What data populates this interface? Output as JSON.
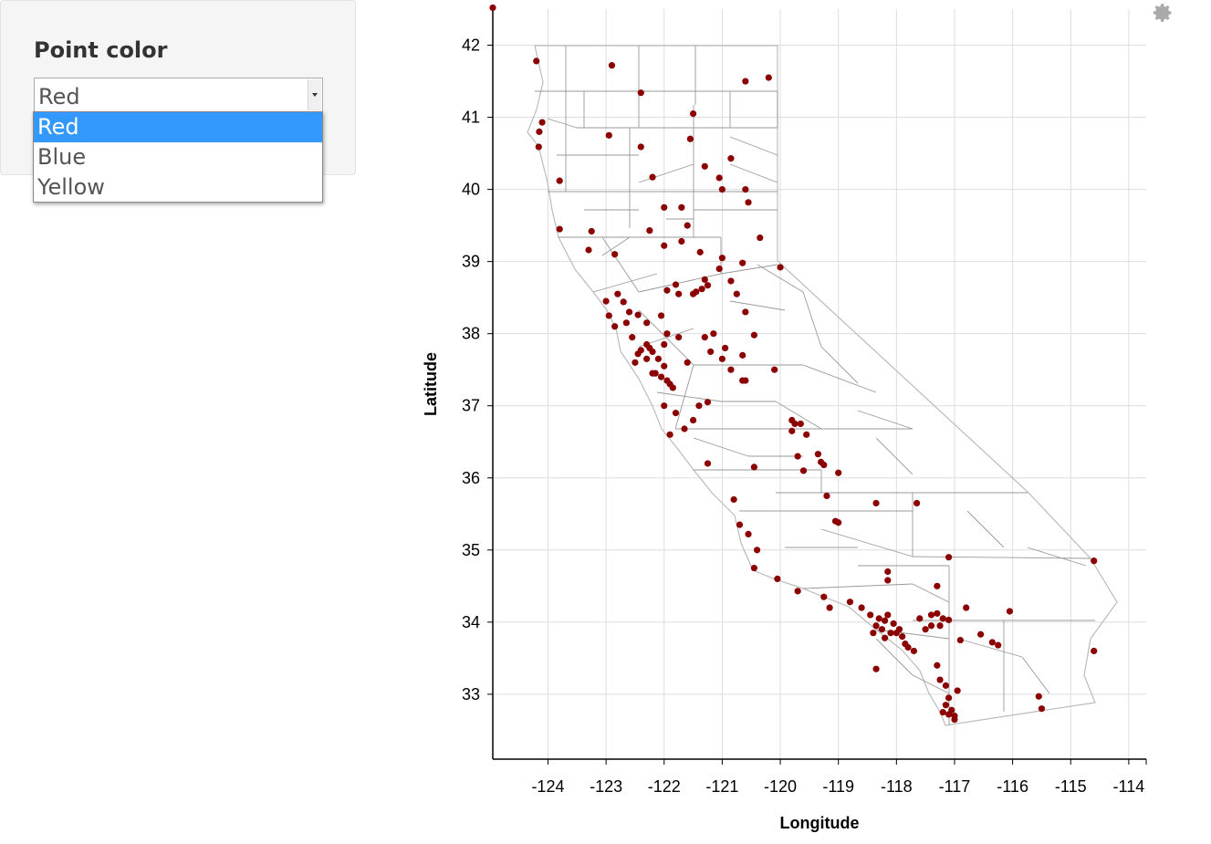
{
  "control": {
    "label": "Point color",
    "selected": "Red",
    "options": [
      "Red",
      "Blue",
      "Yellow"
    ]
  },
  "toolbar": {
    "icon": "gear-icon"
  },
  "colors": {
    "point": "#8b0000",
    "boundary": "#999999",
    "grid": "#dddddd",
    "selected_option": "#3399ff"
  },
  "chart_data": {
    "type": "scatter",
    "title": "",
    "xlabel": "Longitude",
    "ylabel": "Latitude",
    "xlim": [
      -124.95,
      -113.7
    ],
    "ylim": [
      32.1,
      42.5
    ],
    "xticks": [
      -124,
      -123,
      -122,
      -121,
      -120,
      -119,
      -118,
      -117,
      -116,
      -115,
      -114
    ],
    "yticks": [
      33,
      34,
      35,
      36,
      37,
      38,
      39,
      40,
      41,
      42
    ],
    "grid": true,
    "background_map": "California county boundaries",
    "series": [
      {
        "points": [
          [
            -124.95,
            42.52
          ],
          [
            -124.2,
            41.78
          ],
          [
            -122.9,
            41.72
          ],
          [
            -122.4,
            41.34
          ],
          [
            -120.6,
            41.5
          ],
          [
            -120.2,
            41.55
          ],
          [
            -121.5,
            41.05
          ],
          [
            -124.1,
            40.93
          ],
          [
            -124.15,
            40.8
          ],
          [
            -124.16,
            40.59
          ],
          [
            -122.95,
            40.75
          ],
          [
            -122.4,
            40.59
          ],
          [
            -122.2,
            40.17
          ],
          [
            -121.3,
            40.32
          ],
          [
            -120.85,
            40.43
          ],
          [
            -121.05,
            40.16
          ],
          [
            -121.0,
            40.0
          ],
          [
            -120.55,
            39.82
          ],
          [
            -123.8,
            40.12
          ],
          [
            -123.8,
            39.45
          ],
          [
            -123.25,
            39.42
          ],
          [
            -123.3,
            39.16
          ],
          [
            -122.85,
            39.1
          ],
          [
            -122.25,
            39.43
          ],
          [
            -122.0,
            39.75
          ],
          [
            -121.7,
            39.75
          ],
          [
            -121.6,
            39.5
          ],
          [
            -121.7,
            39.28
          ],
          [
            -122.0,
            39.22
          ],
          [
            -121.38,
            39.13
          ],
          [
            -121.0,
            39.05
          ],
          [
            -120.35,
            39.33
          ],
          [
            -120.0,
            38.92
          ],
          [
            -120.65,
            38.98
          ],
          [
            -121.05,
            38.9
          ],
          [
            -121.3,
            38.75
          ],
          [
            -121.35,
            38.62
          ],
          [
            -121.45,
            38.58
          ],
          [
            -121.5,
            38.55
          ],
          [
            -121.25,
            38.67
          ],
          [
            -120.85,
            38.73
          ],
          [
            -120.75,
            38.55
          ],
          [
            -121.8,
            38.68
          ],
          [
            -121.95,
            38.6
          ],
          [
            -121.75,
            38.55
          ],
          [
            -122.7,
            38.44
          ],
          [
            -122.8,
            38.55
          ],
          [
            -122.6,
            38.3
          ],
          [
            -122.45,
            38.26
          ],
          [
            -122.3,
            38.15
          ],
          [
            -122.05,
            38.25
          ],
          [
            -121.95,
            38.0
          ],
          [
            -121.75,
            37.95
          ],
          [
            -122.0,
            37.85
          ],
          [
            -122.2,
            37.75
          ],
          [
            -122.25,
            37.8
          ],
          [
            -122.3,
            37.85
          ],
          [
            -122.4,
            37.77
          ],
          [
            -122.45,
            37.72
          ],
          [
            -122.3,
            37.65
          ],
          [
            -122.1,
            37.65
          ],
          [
            -122.0,
            37.55
          ],
          [
            -121.95,
            37.35
          ],
          [
            -121.9,
            37.3
          ],
          [
            -121.85,
            37.25
          ],
          [
            -122.05,
            37.4
          ],
          [
            -122.15,
            37.45
          ],
          [
            -122.5,
            37.6
          ],
          [
            -122.0,
            37.0
          ],
          [
            -121.8,
            36.9
          ],
          [
            -121.65,
            36.68
          ],
          [
            -121.9,
            36.6
          ],
          [
            -121.5,
            36.8
          ],
          [
            -122.95,
            38.25
          ],
          [
            -123.0,
            38.45
          ],
          [
            -122.85,
            38.1
          ],
          [
            -121.3,
            37.95
          ],
          [
            -121.0,
            37.65
          ],
          [
            -120.85,
            37.5
          ],
          [
            -120.65,
            37.35
          ],
          [
            -120.95,
            37.8
          ],
          [
            -121.2,
            37.75
          ],
          [
            -120.45,
            37.98
          ],
          [
            -121.25,
            37.05
          ],
          [
            -121.4,
            37.0
          ],
          [
            -120.6,
            37.35
          ],
          [
            -120.1,
            37.5
          ],
          [
            -119.8,
            36.8
          ],
          [
            -119.75,
            36.75
          ],
          [
            -119.65,
            36.75
          ],
          [
            -119.8,
            36.65
          ],
          [
            -119.55,
            36.6
          ],
          [
            -119.35,
            36.33
          ],
          [
            -119.3,
            36.22
          ],
          [
            -119.7,
            36.3
          ],
          [
            -119.0,
            36.07
          ],
          [
            -119.25,
            36.18
          ],
          [
            -119.6,
            36.1
          ],
          [
            -120.45,
            36.15
          ],
          [
            -120.8,
            35.7
          ],
          [
            -120.7,
            35.35
          ],
          [
            -120.55,
            35.22
          ],
          [
            -120.4,
            35.0
          ],
          [
            -120.45,
            34.75
          ],
          [
            -120.05,
            34.6
          ],
          [
            -119.7,
            34.43
          ],
          [
            -119.25,
            34.35
          ],
          [
            -119.15,
            34.2
          ],
          [
            -118.8,
            34.28
          ],
          [
            -118.6,
            34.2
          ],
          [
            -118.45,
            34.1
          ],
          [
            -118.3,
            34.05
          ],
          [
            -118.2,
            34.02
          ],
          [
            -118.15,
            34.1
          ],
          [
            -118.05,
            33.98
          ],
          [
            -118.0,
            33.85
          ],
          [
            -117.9,
            33.8
          ],
          [
            -117.85,
            33.7
          ],
          [
            -117.7,
            33.6
          ],
          [
            -117.8,
            33.65
          ],
          [
            -118.1,
            33.85
          ],
          [
            -118.25,
            33.9
          ],
          [
            -118.35,
            33.95
          ],
          [
            -118.4,
            33.85
          ],
          [
            -118.2,
            33.78
          ],
          [
            -117.95,
            33.9
          ],
          [
            -117.6,
            34.05
          ],
          [
            -117.4,
            34.1
          ],
          [
            -117.3,
            34.12
          ],
          [
            -117.2,
            34.05
          ],
          [
            -117.1,
            34.03
          ],
          [
            -117.25,
            33.95
          ],
          [
            -117.4,
            33.95
          ],
          [
            -116.9,
            33.75
          ],
          [
            -116.55,
            33.83
          ],
          [
            -116.35,
            33.72
          ],
          [
            -116.25,
            33.68
          ],
          [
            -117.25,
            33.2
          ],
          [
            -117.15,
            33.12
          ],
          [
            -117.1,
            32.95
          ],
          [
            -117.15,
            32.85
          ],
          [
            -117.2,
            32.75
          ],
          [
            -117.1,
            32.72
          ],
          [
            -117.0,
            32.65
          ],
          [
            -117.05,
            32.78
          ],
          [
            -116.95,
            33.05
          ],
          [
            -117.3,
            33.4
          ],
          [
            -118.35,
            33.35
          ],
          [
            -118.15,
            34.7
          ],
          [
            -118.15,
            34.58
          ],
          [
            -117.3,
            34.5
          ],
          [
            -117.1,
            34.9
          ],
          [
            -119.0,
            35.38
          ],
          [
            -119.05,
            35.4
          ],
          [
            -119.2,
            35.75
          ],
          [
            -117.65,
            35.65
          ],
          [
            -118.35,
            35.65
          ],
          [
            -116.05,
            34.15
          ],
          [
            -114.6,
            34.85
          ],
          [
            -114.6,
            33.6
          ],
          [
            -115.55,
            32.97
          ],
          [
            -115.5,
            32.8
          ],
          [
            -117.0,
            32.7
          ],
          [
            -117.5,
            33.9
          ],
          [
            -116.8,
            34.2
          ],
          [
            -121.25,
            36.2
          ],
          [
            -120.65,
            37.7
          ],
          [
            -121.6,
            37.6
          ],
          [
            -122.2,
            37.45
          ],
          [
            -122.55,
            37.95
          ],
          [
            -122.65,
            38.15
          ],
          [
            -121.15,
            38.0
          ],
          [
            -120.6,
            38.3
          ],
          [
            -121.55,
            40.7
          ],
          [
            -120.6,
            40.0
          ]
        ]
      }
    ]
  }
}
